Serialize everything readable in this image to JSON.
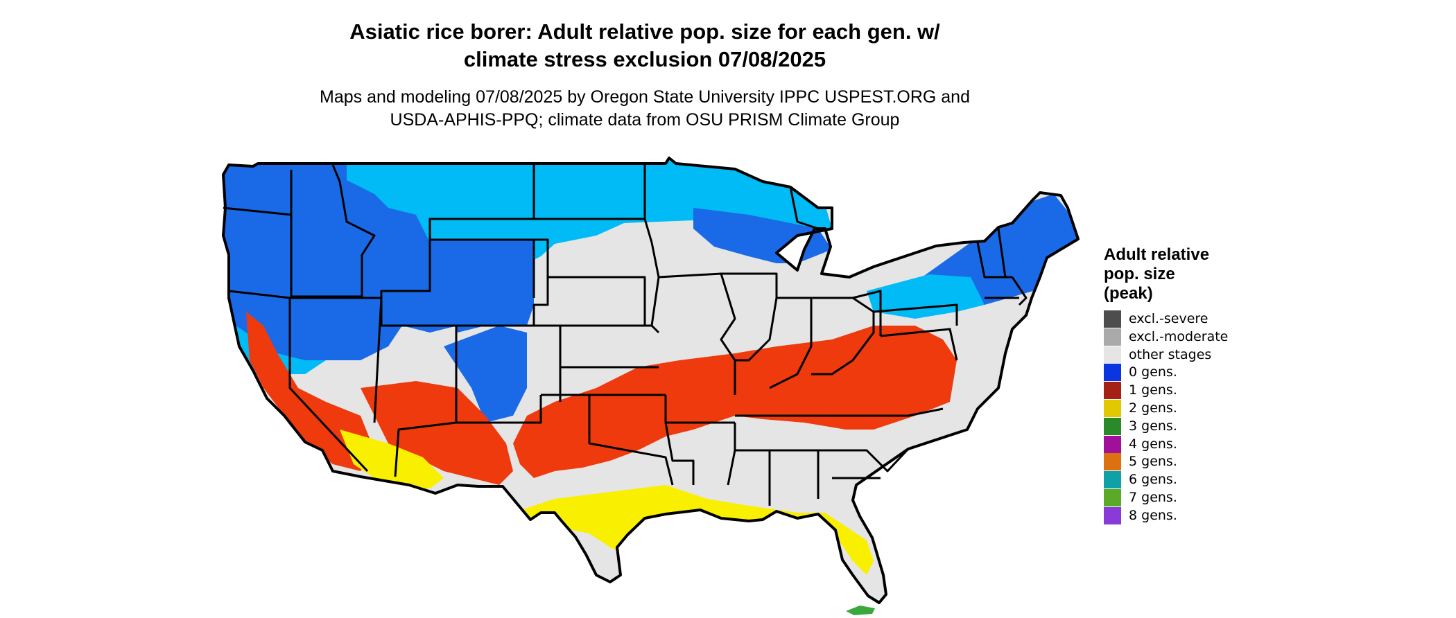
{
  "title": {
    "line1": "Asiatic rice borer: Adult relative pop. size for each gen. w/",
    "line2": "climate stress exclusion 07/08/2025"
  },
  "subtitle": {
    "line1": "Maps and modeling 07/08/2025 by Oregon State University IPPC USPEST.ORG and",
    "line2": "USDA-APHIS-PPQ; climate data from OSU PRISM Climate Group"
  },
  "legend": {
    "title_line1": "Adult relative",
    "title_line2": "pop. size",
    "title_line3": "(peak)",
    "items": [
      {
        "label": "excl.-severe",
        "color": "#4d4d4d"
      },
      {
        "label": "excl.-moderate",
        "color": "#aaaaaa"
      },
      {
        "label": "other stages",
        "color": "#e5e5e5"
      },
      {
        "label": "0 gens.",
        "color": "#0a35e0"
      },
      {
        "label": "1 gens.",
        "color": "#a52015"
      },
      {
        "label": "2 gens.",
        "color": "#e2c800"
      },
      {
        "label": "3 gens.",
        "color": "#2a8a2a"
      },
      {
        "label": "4 gens.",
        "color": "#a0109a"
      },
      {
        "label": "5 gens.",
        "color": "#dd7010"
      },
      {
        "label": "6 gens.",
        "color": "#10a0a8"
      },
      {
        "label": "7 gens.",
        "color": "#5aaa28"
      },
      {
        "label": "8 gens.",
        "color": "#8a3ad8"
      }
    ]
  },
  "map_colors": {
    "land": "#e5e5e5",
    "blue_light": "#00bbf5",
    "blue_dark": "#1a6ae8",
    "red": "#ee3a0c",
    "yellow": "#f8f000",
    "border": "#000000"
  }
}
